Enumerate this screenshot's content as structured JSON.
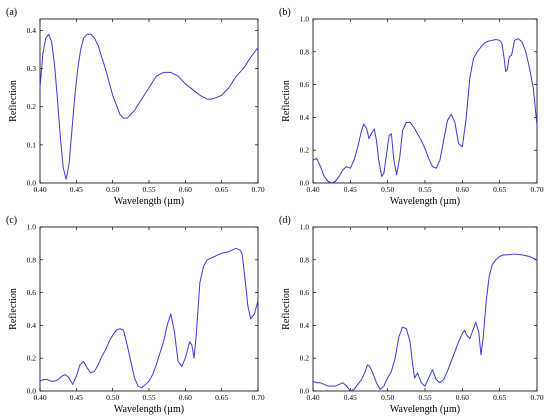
{
  "colors": {
    "line": "#3a3ad8",
    "axis": "#000000",
    "background": "#ffffff"
  },
  "chart_data": [
    {
      "type": "line",
      "panel_label": "(a)",
      "xlabel": "Wavelength (µm)",
      "ylabel": "Reflection",
      "xlim": [
        0.4,
        0.7
      ],
      "ylim": [
        0,
        0.43
      ],
      "xticks": [
        "0.40",
        "0.45",
        "0.50",
        "0.55",
        "0.60",
        "0.65",
        "0.70"
      ],
      "yticks": [
        "0.0",
        "0.1",
        "0.2",
        "0.3",
        "0.4"
      ],
      "grid": false,
      "series": [
        {
          "x": [
            0.4,
            0.404,
            0.408,
            0.412,
            0.416,
            0.42,
            0.424,
            0.428,
            0.432,
            0.436,
            0.44,
            0.444,
            0.448,
            0.452,
            0.456,
            0.46,
            0.465,
            0.47,
            0.475,
            0.48,
            0.49,
            0.5,
            0.51,
            0.515,
            0.52,
            0.53,
            0.54,
            0.55,
            0.56,
            0.57,
            0.58,
            0.59,
            0.6,
            0.61,
            0.62,
            0.63,
            0.635,
            0.64,
            0.65,
            0.66,
            0.67,
            0.68,
            0.69,
            0.7
          ],
          "values": [
            0.25,
            0.34,
            0.38,
            0.39,
            0.37,
            0.31,
            0.22,
            0.12,
            0.04,
            0.01,
            0.05,
            0.14,
            0.23,
            0.3,
            0.35,
            0.38,
            0.39,
            0.39,
            0.38,
            0.36,
            0.3,
            0.23,
            0.18,
            0.17,
            0.17,
            0.19,
            0.22,
            0.25,
            0.28,
            0.29,
            0.29,
            0.28,
            0.26,
            0.245,
            0.23,
            0.22,
            0.22,
            0.222,
            0.23,
            0.25,
            0.28,
            0.3,
            0.33,
            0.355
          ]
        }
      ]
    },
    {
      "type": "line",
      "panel_label": "(b)",
      "xlabel": "Wavelength (µm)",
      "ylabel": "Reflection",
      "xlim": [
        0.4,
        0.7
      ],
      "ylim": [
        0,
        1.0
      ],
      "xticks": [
        "0.40",
        "0.45",
        "0.50",
        "0.55",
        "0.60",
        "0.65",
        "0.70"
      ],
      "yticks": [
        "0.0",
        "0.2",
        "0.4",
        "0.6",
        "0.8",
        "1.0"
      ],
      "grid": false,
      "series": [
        {
          "x": [
            0.4,
            0.405,
            0.41,
            0.415,
            0.42,
            0.425,
            0.43,
            0.435,
            0.44,
            0.445,
            0.45,
            0.455,
            0.46,
            0.465,
            0.468,
            0.472,
            0.475,
            0.478,
            0.482,
            0.485,
            0.488,
            0.492,
            0.495,
            0.498,
            0.502,
            0.505,
            0.508,
            0.512,
            0.516,
            0.52,
            0.525,
            0.53,
            0.535,
            0.54,
            0.545,
            0.55,
            0.555,
            0.56,
            0.565,
            0.57,
            0.575,
            0.58,
            0.585,
            0.59,
            0.595,
            0.6,
            0.605,
            0.61,
            0.615,
            0.62,
            0.625,
            0.63,
            0.635,
            0.64,
            0.645,
            0.65,
            0.653,
            0.656,
            0.658,
            0.66,
            0.663,
            0.666,
            0.67,
            0.675,
            0.68,
            0.685,
            0.69,
            0.695,
            0.7
          ],
          "values": [
            0.14,
            0.15,
            0.1,
            0.04,
            0.01,
            0.0,
            0.01,
            0.04,
            0.08,
            0.1,
            0.09,
            0.14,
            0.22,
            0.32,
            0.36,
            0.33,
            0.27,
            0.3,
            0.33,
            0.26,
            0.14,
            0.04,
            0.06,
            0.16,
            0.29,
            0.3,
            0.15,
            0.05,
            0.15,
            0.32,
            0.37,
            0.37,
            0.34,
            0.3,
            0.26,
            0.21,
            0.15,
            0.1,
            0.09,
            0.14,
            0.26,
            0.38,
            0.42,
            0.37,
            0.24,
            0.22,
            0.39,
            0.64,
            0.76,
            0.8,
            0.83,
            0.855,
            0.865,
            0.87,
            0.875,
            0.87,
            0.85,
            0.76,
            0.68,
            0.69,
            0.77,
            0.78,
            0.87,
            0.88,
            0.86,
            0.8,
            0.7,
            0.58,
            0.35
          ]
        }
      ]
    },
    {
      "type": "line",
      "panel_label": "(c)",
      "xlabel": "Wavelength (µm)",
      "ylabel": "Reflection",
      "xlim": [
        0.4,
        0.7
      ],
      "ylim": [
        0,
        1.0
      ],
      "xticks": [
        "0.40",
        "0.45",
        "0.50",
        "0.55",
        "0.60",
        "0.65",
        "0.70"
      ],
      "yticks": [
        "0.0",
        "0.2",
        "0.4",
        "0.6",
        "0.8",
        "1.0"
      ],
      "grid": false,
      "series": [
        {
          "x": [
            0.4,
            0.405,
            0.41,
            0.415,
            0.42,
            0.425,
            0.43,
            0.435,
            0.44,
            0.445,
            0.45,
            0.455,
            0.46,
            0.465,
            0.47,
            0.475,
            0.48,
            0.485,
            0.49,
            0.495,
            0.5,
            0.505,
            0.51,
            0.515,
            0.52,
            0.525,
            0.53,
            0.535,
            0.54,
            0.545,
            0.55,
            0.555,
            0.56,
            0.565,
            0.57,
            0.575,
            0.58,
            0.585,
            0.59,
            0.595,
            0.6,
            0.603,
            0.606,
            0.609,
            0.612,
            0.615,
            0.62,
            0.625,
            0.63,
            0.64,
            0.65,
            0.66,
            0.665,
            0.67,
            0.675,
            0.678,
            0.682,
            0.686,
            0.69,
            0.695,
            0.7
          ],
          "values": [
            0.06,
            0.07,
            0.07,
            0.06,
            0.06,
            0.07,
            0.09,
            0.1,
            0.08,
            0.04,
            0.09,
            0.16,
            0.18,
            0.14,
            0.11,
            0.12,
            0.16,
            0.21,
            0.25,
            0.3,
            0.34,
            0.37,
            0.38,
            0.37,
            0.28,
            0.18,
            0.08,
            0.03,
            0.02,
            0.04,
            0.06,
            0.1,
            0.16,
            0.23,
            0.3,
            0.4,
            0.47,
            0.36,
            0.18,
            0.15,
            0.2,
            0.25,
            0.3,
            0.28,
            0.2,
            0.34,
            0.66,
            0.76,
            0.8,
            0.82,
            0.84,
            0.85,
            0.86,
            0.87,
            0.86,
            0.84,
            0.69,
            0.52,
            0.44,
            0.47,
            0.55
          ]
        }
      ]
    },
    {
      "type": "line",
      "panel_label": "(d)",
      "xlabel": "Wavelength (µm)",
      "ylabel": "Reflection",
      "xlim": [
        0.4,
        0.7
      ],
      "ylim": [
        0,
        1.0
      ],
      "xticks": [
        "0.40",
        "0.45",
        "0.50",
        "0.55",
        "0.60",
        "0.65",
        "0.70"
      ],
      "yticks": [
        "0.0",
        "0.2",
        "0.4",
        "0.6",
        "0.8",
        "1.0"
      ],
      "grid": false,
      "series": [
        {
          "x": [
            0.4,
            0.405,
            0.41,
            0.415,
            0.42,
            0.425,
            0.43,
            0.435,
            0.44,
            0.445,
            0.45,
            0.455,
            0.46,
            0.465,
            0.47,
            0.473,
            0.476,
            0.48,
            0.485,
            0.49,
            0.495,
            0.5,
            0.505,
            0.51,
            0.515,
            0.52,
            0.525,
            0.53,
            0.533,
            0.536,
            0.54,
            0.545,
            0.55,
            0.555,
            0.56,
            0.565,
            0.57,
            0.575,
            0.58,
            0.585,
            0.59,
            0.595,
            0.6,
            0.603,
            0.606,
            0.61,
            0.615,
            0.618,
            0.622,
            0.625,
            0.628,
            0.632,
            0.636,
            0.64,
            0.645,
            0.65,
            0.655,
            0.66,
            0.67,
            0.68,
            0.69,
            0.695,
            0.7
          ],
          "values": [
            0.06,
            0.05,
            0.05,
            0.04,
            0.03,
            0.03,
            0.03,
            0.04,
            0.05,
            0.03,
            0.0,
            0.01,
            0.04,
            0.07,
            0.12,
            0.16,
            0.15,
            0.11,
            0.05,
            0.01,
            0.03,
            0.08,
            0.12,
            0.2,
            0.33,
            0.39,
            0.38,
            0.3,
            0.18,
            0.08,
            0.11,
            0.05,
            0.03,
            0.08,
            0.13,
            0.07,
            0.05,
            0.07,
            0.12,
            0.18,
            0.24,
            0.3,
            0.35,
            0.37,
            0.34,
            0.32,
            0.38,
            0.42,
            0.36,
            0.22,
            0.33,
            0.55,
            0.7,
            0.77,
            0.8,
            0.82,
            0.83,
            0.83,
            0.835,
            0.83,
            0.82,
            0.81,
            0.8
          ]
        }
      ]
    }
  ]
}
